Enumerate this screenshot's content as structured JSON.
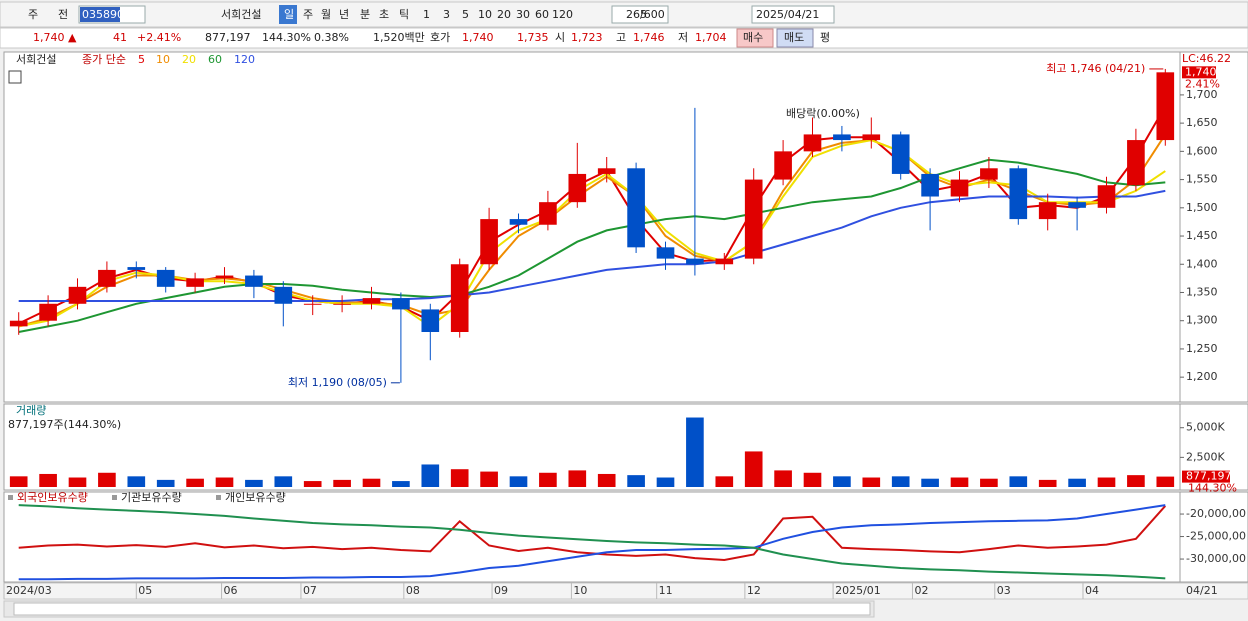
{
  "toolbar": {
    "items": [
      "주",
      "전",
      "035890",
      "서희건설",
      "일",
      "주",
      "월",
      "년",
      "분",
      "초",
      "틱",
      "1",
      "3",
      "5",
      "10",
      "20",
      "30",
      "60",
      "120",
      "265",
      "/600",
      "2025/04/21"
    ]
  },
  "info": {
    "items": [
      "1,740 ▲",
      "41",
      "+2.41%",
      "877,197",
      "144.30%",
      "0.38%",
      "1,520백만",
      "호가",
      "1,740",
      "1,735",
      "시",
      "1,723",
      "고",
      "1,746",
      "저",
      "1,704",
      "매수",
      "매도",
      "평"
    ]
  },
  "chart_data": [
    {
      "type": "candlestick",
      "title": "서희건설",
      "legend_label": "종가 단순",
      "xlim": [
        -0.5,
        39.5
      ],
      "xticks": [
        {
          "value": -0.5,
          "label": "2024/03"
        },
        {
          "value": 4.0,
          "label": "05"
        },
        {
          "value": 6.9,
          "label": "06"
        },
        {
          "value": 9.6,
          "label": "07"
        },
        {
          "value": 13.1,
          "label": "08"
        },
        {
          "value": 16.1,
          "label": "09"
        },
        {
          "value": 18.8,
          "label": "10"
        },
        {
          "value": 21.7,
          "label": "11"
        },
        {
          "value": 24.7,
          "label": "12"
        },
        {
          "value": 27.7,
          "label": "2025/01"
        },
        {
          "value": 30.4,
          "label": "02"
        },
        {
          "value": 33.2,
          "label": "03"
        },
        {
          "value": 36.2,
          "label": "04"
        }
      ],
      "last_date": "04/21",
      "ylim": [
        1156,
        1776
      ],
      "yticks": [
        {
          "value": 1200,
          "label": "1,200"
        },
        {
          "value": 1250,
          "label": "1,250"
        },
        {
          "value": 1300,
          "label": "1,300"
        },
        {
          "value": 1350,
          "label": "1,350"
        },
        {
          "value": 1400,
          "label": "1,400"
        },
        {
          "value": 1450,
          "label": "1,450"
        },
        {
          "value": 1500,
          "label": "1,500"
        },
        {
          "value": 1550,
          "label": "1,550"
        },
        {
          "value": 1600,
          "label": "1,600"
        },
        {
          "value": 1650,
          "label": "1,650"
        },
        {
          "value": 1700,
          "label": "1,700"
        }
      ],
      "up_color": "#e00000",
      "down_color": "#0050c8",
      "open": [
        1290,
        1300,
        1330,
        1360,
        1395,
        1390,
        1360,
        1375,
        1380,
        1360,
        1330,
        1330,
        1330,
        1340,
        1320,
        1280,
        1400,
        1480,
        1470,
        1510,
        1560,
        1570,
        1430,
        1410,
        1400,
        1410,
        1550,
        1600,
        1630,
        1620,
        1630,
        1560,
        1520,
        1550,
        1570,
        1480,
        1510,
        1500,
        1540,
        1620
      ],
      "high": [
        1315,
        1345,
        1375,
        1405,
        1405,
        1395,
        1385,
        1395,
        1390,
        1370,
        1345,
        1345,
        1360,
        1350,
        1330,
        1410,
        1500,
        1490,
        1530,
        1615,
        1590,
        1580,
        1440,
        1677,
        1420,
        1570,
        1620,
        1660,
        1645,
        1660,
        1635,
        1570,
        1565,
        1590,
        1575,
        1525,
        1520,
        1555,
        1640,
        1746
      ],
      "low": [
        1275,
        1290,
        1320,
        1350,
        1375,
        1350,
        1350,
        1365,
        1340,
        1290,
        1310,
        1315,
        1320,
        1190,
        1230,
        1270,
        1390,
        1455,
        1460,
        1500,
        1545,
        1420,
        1390,
        1380,
        1390,
        1400,
        1540,
        1590,
        1600,
        1605,
        1550,
        1460,
        1510,
        1535,
        1470,
        1460,
        1460,
        1490,
        1530,
        1610
      ],
      "close": [
        1300,
        1330,
        1360,
        1390,
        1390,
        1360,
        1375,
        1380,
        1360,
        1330,
        1330,
        1330,
        1340,
        1320,
        1280,
        1400,
        1480,
        1470,
        1510,
        1560,
        1570,
        1430,
        1410,
        1400,
        1410,
        1550,
        1600,
        1630,
        1620,
        1630,
        1560,
        1520,
        1550,
        1570,
        1480,
        1510,
        1500,
        1540,
        1620,
        1740
      ],
      "series": [
        {
          "name": "5",
          "color": "#e00000",
          "values": [
            1295,
            1320,
            1345,
            1375,
            1390,
            1375,
            1370,
            1378,
            1368,
            1345,
            1335,
            1330,
            1335,
            1325,
            1300,
            1350,
            1440,
            1470,
            1495,
            1540,
            1565,
            1480,
            1420,
            1405,
            1408,
            1500,
            1580,
            1620,
            1625,
            1625,
            1580,
            1530,
            1540,
            1560,
            1500,
            1505,
            1500,
            1520,
            1590,
            1680
          ]
        },
        {
          "name": "10",
          "color": "#f08c00",
          "values": [
            1290,
            1305,
            1330,
            1360,
            1380,
            1380,
            1372,
            1375,
            1370,
            1355,
            1340,
            1332,
            1332,
            1328,
            1310,
            1320,
            1390,
            1450,
            1480,
            1520,
            1555,
            1520,
            1450,
            1415,
            1405,
            1440,
            1530,
            1600,
            1615,
            1620,
            1600,
            1555,
            1535,
            1550,
            1530,
            1510,
            1505,
            1510,
            1550,
            1630
          ]
        },
        {
          "name": "20",
          "color": "#f0e000",
          "values": [
            1290,
            1300,
            1330,
            1370,
            1385,
            1380,
            1370,
            1370,
            1365,
            1350,
            1335,
            1330,
            1330,
            1325,
            1290,
            1330,
            1420,
            1460,
            1480,
            1530,
            1560,
            1520,
            1460,
            1420,
            1405,
            1440,
            1520,
            1590,
            1610,
            1620,
            1600,
            1560,
            1540,
            1545,
            1540,
            1510,
            1510,
            1510,
            1530,
            1565
          ]
        },
        {
          "name": "60",
          "color": "#1e9632",
          "values": [
            1280,
            1290,
            1300,
            1315,
            1330,
            1340,
            1350,
            1360,
            1365,
            1365,
            1362,
            1355,
            1350,
            1345,
            1342,
            1345,
            1360,
            1380,
            1410,
            1440,
            1460,
            1470,
            1480,
            1485,
            1480,
            1490,
            1500,
            1510,
            1515,
            1520,
            1535,
            1555,
            1570,
            1585,
            1580,
            1570,
            1560,
            1545,
            1540,
            1545
          ]
        },
        {
          "name": "120",
          "color": "#3050e0",
          "values": [
            1335,
            1335,
            1335,
            1335,
            1335,
            1335,
            1335,
            1335,
            1335,
            1335,
            1335,
            1335,
            1338,
            1338,
            1340,
            1345,
            1350,
            1360,
            1370,
            1380,
            1390,
            1395,
            1400,
            1400,
            1405,
            1420,
            1435,
            1450,
            1465,
            1485,
            1500,
            1510,
            1515,
            1520,
            1520,
            1520,
            1518,
            1520,
            1520,
            1530
          ]
        }
      ],
      "high_label": "최고 1,746 (04/21)",
      "low_label": "최저 1,190 (08/05)",
      "note": "배당락(0.00%)",
      "lc_label": "LC:46.22",
      "last_price_label": "1,740",
      "change_label": "2.41%"
    },
    {
      "type": "bar",
      "title": "거래량",
      "subtitle": "877,197주(144.30%)",
      "ylim": [
        0,
        7000
      ],
      "yticks": [
        {
          "value": 2500,
          "label": "2,500K"
        },
        {
          "value": 5000,
          "label": "5,000K"
        }
      ],
      "values": [
        900,
        1100,
        800,
        1200,
        900,
        600,
        700,
        800,
        600,
        900,
        500,
        600,
        700,
        500,
        1900,
        1500,
        1300,
        900,
        1200,
        1400,
        1100,
        1000,
        800,
        5860,
        900,
        3000,
        1400,
        1200,
        900,
        800,
        900,
        700,
        800,
        700,
        900,
        600,
        700,
        800,
        1000,
        877.197
      ],
      "last_value_label": "877,197",
      "last_pct_label": "144.30%"
    },
    {
      "type": "line",
      "ylim": [
        -35100000,
        -15100000
      ],
      "yticks": [
        {
          "value": -20000000,
          "label": "-20,000,00"
        },
        {
          "value": -25000000,
          "label": "-25,000,00"
        },
        {
          "value": -30000000,
          "label": "-30,000,00"
        }
      ],
      "series": [
        {
          "name": "외국인보유수량",
          "color": "#d01010",
          "values": [
            -27500000,
            -27000000,
            -26800000,
            -27200000,
            -26900000,
            -27300000,
            -26500000,
            -27400000,
            -27000000,
            -27600000,
            -27300000,
            -27800000,
            -27500000,
            -28000000,
            -28300000,
            -21600000,
            -27000000,
            -28200000,
            -27500000,
            -28500000,
            -29000000,
            -29300000,
            -29000000,
            -29800000,
            -30200000,
            -29000000,
            -21000000,
            -20600000,
            -27500000,
            -27800000,
            -28000000,
            -28300000,
            -28500000,
            -27800000,
            -27000000,
            -27500000,
            -27200000,
            -26800000,
            -25500000,
            -18200000
          ]
        },
        {
          "name": "기관보유수량",
          "color": "#2050e0",
          "values": [
            -34500000,
            -34500000,
            -34400000,
            -34400000,
            -34300000,
            -34300000,
            -34300000,
            -34200000,
            -34200000,
            -34200000,
            -34100000,
            -34100000,
            -34000000,
            -34000000,
            -33800000,
            -33000000,
            -32000000,
            -31500000,
            -30500000,
            -29500000,
            -28500000,
            -28000000,
            -28000000,
            -27800000,
            -27700000,
            -27500000,
            -25500000,
            -24000000,
            -23000000,
            -22500000,
            -22300000,
            -22000000,
            -21800000,
            -21600000,
            -21500000,
            -21400000,
            -21000000,
            -20000000,
            -19000000,
            -18000000
          ]
        },
        {
          "name": "개인보유수량",
          "color": "#209050",
          "values": [
            -18000000,
            -18300000,
            -18700000,
            -19000000,
            -19300000,
            -19600000,
            -20000000,
            -20400000,
            -21000000,
            -21500000,
            -22000000,
            -22300000,
            -22500000,
            -22800000,
            -23000000,
            -23500000,
            -24200000,
            -24800000,
            -25200000,
            -25600000,
            -26000000,
            -26300000,
            -26500000,
            -26800000,
            -27000000,
            -27500000,
            -29000000,
            -30000000,
            -31000000,
            -31500000,
            -32000000,
            -32300000,
            -32500000,
            -32800000,
            -33000000,
            -33200000,
            -33400000,
            -33600000,
            -33900000,
            -34300000
          ]
        }
      ]
    }
  ]
}
